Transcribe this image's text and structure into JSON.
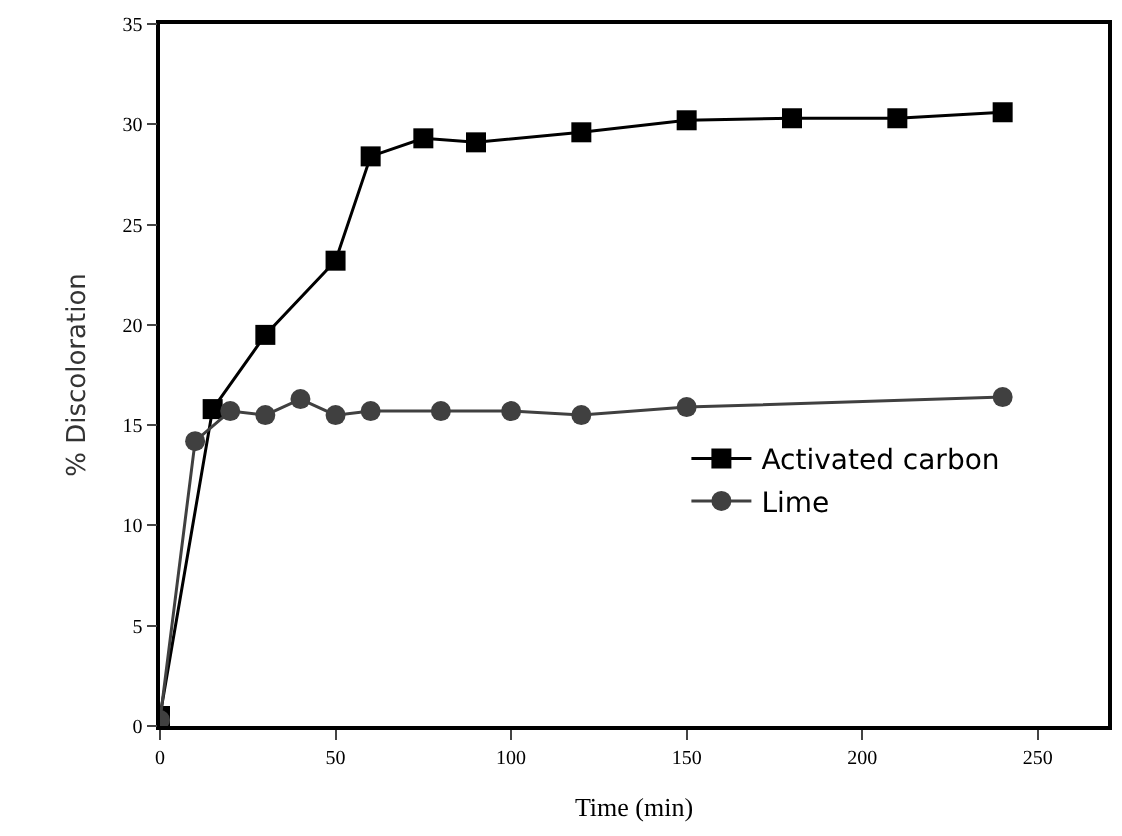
{
  "chart_data": {
    "type": "line",
    "xlabel": "Time (min)",
    "ylabel": "% Discoloration",
    "xlim": [
      0,
      270
    ],
    "ylim": [
      0,
      35
    ],
    "xticks": [
      0,
      50,
      100,
      150,
      200,
      250
    ],
    "yticks": [
      0,
      5,
      10,
      15,
      20,
      25,
      30,
      35
    ],
    "legend": "right",
    "series": [
      {
        "name": "Activated carbon",
        "color": "#000000",
        "marker": "square",
        "x": [
          0,
          15,
          30,
          50,
          60,
          75,
          90,
          120,
          150,
          180,
          210,
          240
        ],
        "values": [
          0.5,
          15.8,
          19.5,
          23.2,
          28.4,
          29.3,
          29.1,
          29.6,
          30.2,
          30.3,
          30.3,
          30.6
        ]
      },
      {
        "name": "Lime",
        "color": "#404040",
        "marker": "circle",
        "x": [
          0,
          10,
          20,
          30,
          40,
          50,
          60,
          80,
          100,
          120,
          150,
          240
        ],
        "values": [
          0.3,
          14.2,
          15.7,
          15.5,
          16.3,
          15.5,
          15.7,
          15.7,
          15.7,
          15.5,
          15.9,
          16.4
        ]
      }
    ]
  }
}
